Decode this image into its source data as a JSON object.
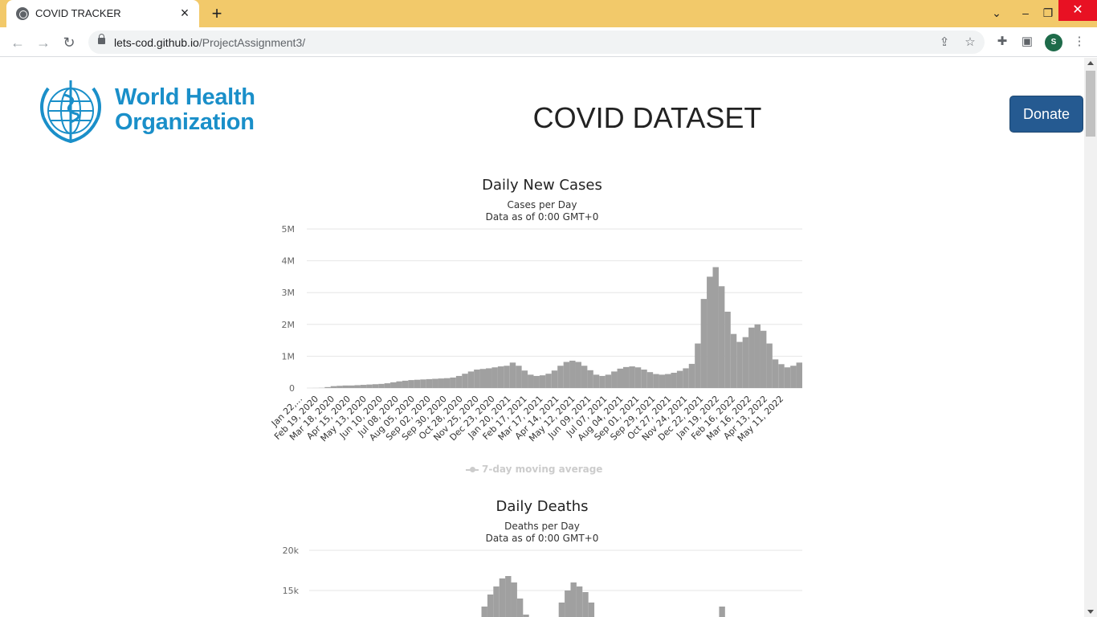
{
  "browser": {
    "tab_title": "COVID TRACKER",
    "url_domain": "lets-cod.github.io",
    "url_path": "/ProjectAssignment3/",
    "profile_initial": "S"
  },
  "page": {
    "logo_text_line1": "World Health",
    "logo_text_line2": "Organization",
    "title": "COVID DATASET",
    "donate_label": "Donate"
  },
  "chart_data": [
    {
      "type": "bar",
      "title": "Daily New Cases",
      "subtitle_line1": "Cases per Day",
      "subtitle_line2": "Data as of 0:00 GMT+0",
      "y_ticks": [
        "0",
        "1M",
        "2M",
        "3M",
        "4M",
        "5M"
      ],
      "ylim": [
        0,
        5000000
      ],
      "x_ticks": [
        "Jan 22,...",
        "Feb 19, 2020",
        "Mar 18, 2020",
        "Apr 15, 2020",
        "May 13, 2020",
        "Jun 10, 2020",
        "Jul 08, 2020",
        "Aug 05, 2020",
        "Sep 02, 2020",
        "Sep 30, 2020",
        "Oct 28, 2020",
        "Nov 25, 2020",
        "Dec 23, 2020",
        "Jan 20, 2021",
        "Feb 17, 2021",
        "Mar 17, 2021",
        "Apr 14, 2021",
        "May 12, 2021",
        "Jun 09, 2021",
        "Jul 07, 2021",
        "Aug 04, 2021",
        "Sep 01, 2021",
        "Sep 29, 2021",
        "Oct 27, 2021",
        "Nov 24, 2021",
        "Dec 22, 2021",
        "Jan 19, 2022",
        "Feb 16, 2022",
        "Mar 16, 2022",
        "Apr 13, 2022",
        "May 11, 2022"
      ],
      "series": [
        {
          "name": "7-day moving average",
          "weekly_values": [
            0,
            2000,
            5000,
            30000,
            60000,
            70000,
            80000,
            80000,
            90000,
            100000,
            110000,
            120000,
            130000,
            150000,
            180000,
            210000,
            230000,
            250000,
            260000,
            270000,
            280000,
            290000,
            300000,
            310000,
            330000,
            380000,
            450000,
            520000,
            580000,
            600000,
            620000,
            650000,
            680000,
            700000,
            800000,
            700000,
            550000,
            420000,
            380000,
            400000,
            450000,
            550000,
            700000,
            820000,
            860000,
            820000,
            700000,
            560000,
            420000,
            380000,
            420000,
            520000,
            610000,
            660000,
            680000,
            650000,
            580000,
            500000,
            440000,
            420000,
            440000,
            480000,
            540000,
            620000,
            760000,
            1400000,
            2800000,
            3500000,
            3800000,
            3200000,
            2400000,
            1700000,
            1450000,
            1600000,
            1900000,
            2000000,
            1800000,
            1400000,
            900000,
            750000,
            650000,
            700000,
            800000
          ]
        }
      ],
      "bar_color": "#a0a0a0",
      "legend_color": "#cccccc"
    },
    {
      "type": "bar",
      "title": "Daily Deaths",
      "subtitle_line1": "Deaths per Day",
      "subtitle_line2": "Data as of 0:00 GMT+0",
      "y_ticks": [
        "15k",
        "20k"
      ],
      "ylim": [
        0,
        20000
      ],
      "series": [
        {
          "name": "",
          "weekly_values": [
            0,
            0,
            0,
            0,
            0,
            0,
            0,
            0,
            0,
            0,
            0,
            0,
            0,
            0,
            0,
            0,
            0,
            0,
            0,
            0,
            0,
            0,
            0,
            0,
            0,
            0,
            0,
            0,
            0,
            13000,
            14500,
            15500,
            16500,
            16800,
            16000,
            14000,
            12000,
            0,
            0,
            0,
            0,
            0,
            13500,
            15000,
            16000,
            15500,
            14800,
            13500,
            0,
            0,
            0,
            0,
            0,
            0,
            0,
            0,
            0,
            0,
            0,
            0,
            0,
            0,
            0,
            0,
            0,
            0,
            0,
            0,
            0,
            13000,
            0,
            0,
            0,
            0,
            0,
            0,
            0,
            0,
            0,
            0,
            0,
            0,
            0
          ]
        }
      ],
      "bar_color": "#a0a0a0"
    }
  ]
}
